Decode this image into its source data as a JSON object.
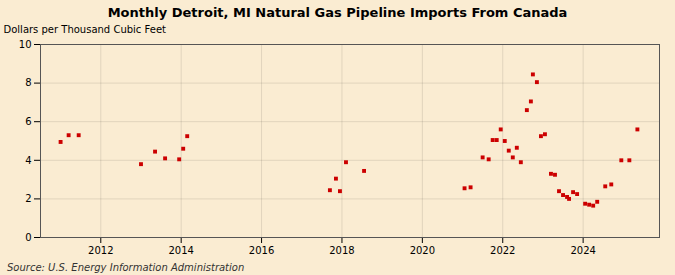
{
  "chart_data": {
    "type": "scatter",
    "title": "Monthly Detroit, MI Natural Gas Pipeline Imports From Canada",
    "ylabel": "Dollars per Thousand Cubic Feet",
    "source": "Source: U.S. Energy Information Administration",
    "color": "#cc0000",
    "marker": "square",
    "grid": true,
    "xlim": [
      2010.5,
      2025.9
    ],
    "ylim": [
      0,
      10
    ],
    "xticks": [
      2012,
      2014,
      2016,
      2018,
      2020,
      2022,
      2024
    ],
    "yticks": [
      0,
      2,
      4,
      6,
      8,
      10
    ],
    "x": [
      2011.0,
      2011.2,
      2011.45,
      2013.0,
      2013.35,
      2013.6,
      2013.95,
      2014.05,
      2014.15,
      2017.7,
      2017.85,
      2017.95,
      2018.1,
      2018.55,
      2021.05,
      2021.2,
      2021.5,
      2021.65,
      2021.75,
      2021.85,
      2021.95,
      2022.05,
      2022.15,
      2022.25,
      2022.35,
      2022.45,
      2022.6,
      2022.7,
      2022.75,
      2022.85,
      2022.95,
      2023.05,
      2023.2,
      2023.3,
      2023.4,
      2023.5,
      2023.6,
      2023.65,
      2023.75,
      2023.85,
      2024.05,
      2024.15,
      2024.25,
      2024.35,
      2024.55,
      2024.7,
      2024.95,
      2025.15,
      2025.35
    ],
    "values": [
      4.95,
      5.3,
      5.3,
      3.8,
      4.45,
      4.1,
      4.05,
      4.6,
      5.25,
      2.45,
      3.05,
      2.4,
      3.9,
      3.45,
      2.55,
      2.6,
      4.15,
      4.05,
      5.05,
      5.05,
      5.6,
      5.0,
      4.5,
      4.15,
      4.65,
      3.9,
      6.6,
      7.05,
      8.45,
      8.05,
      5.25,
      5.35,
      3.3,
      3.25,
      2.4,
      2.2,
      2.1,
      2.0,
      2.35,
      2.25,
      1.75,
      1.7,
      1.65,
      1.85,
      2.65,
      2.75,
      4.0,
      4.0,
      5.6
    ]
  }
}
